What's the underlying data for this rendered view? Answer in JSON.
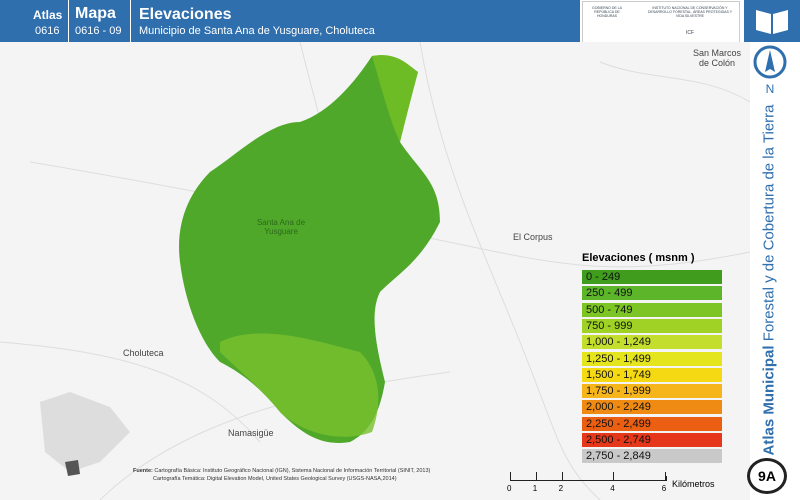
{
  "header": {
    "atlas_label": "Atlas",
    "atlas_code": "0616",
    "map_label": "Mapa",
    "map_code": "0616 - 09",
    "title": "Elevaciones",
    "subtitle": "Municipio de Santa Ana de Yusguare, Choluteca"
  },
  "logos": {
    "government": "GOBIERNO DE LA REPÚBLICA DE HONDURAS",
    "institute": "INSTITUTO NACIONAL DE CONSERVACIÓN Y DESARROLLO FORESTAL, ÁREAS PROTEGIDAS Y VIDA SILVESTRE",
    "institute_abbr": "ICF"
  },
  "places": [
    "San Marcos de Colón",
    "El Corpus",
    "Choluteca",
    "Namasigüe",
    "Santa Ana de Yusguare"
  ],
  "legend": {
    "title": "Elevaciones ( msnm )",
    "items": [
      {
        "label": "0 - 249",
        "color": "#3f9c1c"
      },
      {
        "label": "250 - 499",
        "color": "#5db52a"
      },
      {
        "label": "500 - 749",
        "color": "#7cc524"
      },
      {
        "label": "750 - 999",
        "color": "#9fd224"
      },
      {
        "label": "1,000 - 1,249",
        "color": "#c3de2c"
      },
      {
        "label": "1,250 - 1,499",
        "color": "#e5e51e"
      },
      {
        "label": "1,500 - 1,749",
        "color": "#f5d912"
      },
      {
        "label": "1,750 - 1,999",
        "color": "#f7b51c"
      },
      {
        "label": "2,000 - 2,249",
        "color": "#ef8a12"
      },
      {
        "label": "2,250 - 2,499",
        "color": "#eb5f12"
      },
      {
        "label": "2,500 - 2,749",
        "color": "#e5381a"
      },
      {
        "label": "2,750 - 2,849",
        "color": "#c9c9c9"
      }
    ]
  },
  "north": "N",
  "sidebar": {
    "bold": "Atlas Municipal",
    "rest": "Forestal y de Cobertura de la Tierra",
    "page": "9A"
  },
  "scale": {
    "ticks": [
      0,
      1,
      2,
      4,
      6
    ],
    "unit": "Kilómetros"
  },
  "footer": {
    "label": "Fuente:",
    "lines": [
      "Cartografía Básica: Instituto Geográfico Nacional (IGN), Sistema Nacional de Información Territorial (SINIT, 2013)",
      "Cartografía Temática: Digital Elevation Model, United States Geological Survey (USGS-NASA,2014)"
    ]
  }
}
